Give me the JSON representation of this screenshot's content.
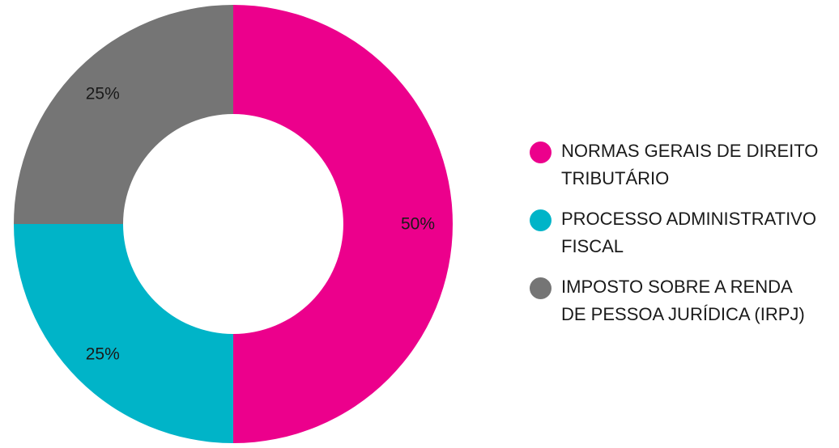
{
  "chart_data": {
    "type": "pie",
    "donut": true,
    "title": "",
    "categories": [
      "NORMAS GERAIS DE DIREITO TRIBUTÁRIO",
      "PROCESSO ADMINISTRATIVO FISCAL",
      "IMPOSTO SOBRE A RENDA DE PESSOA JURÍDICA (IRPJ)"
    ],
    "values": [
      50,
      25,
      25
    ],
    "data_labels": [
      "50%",
      "25%",
      "25%"
    ],
    "colors": [
      "#ec008c",
      "#00b4c8",
      "#757575"
    ],
    "legend": {
      "position": "right",
      "lines": [
        [
          "NORMAS GERAIS DE DIREITO",
          "TRIBUTÁRIO"
        ],
        [
          "PROCESSO ADMINISTRATIVO",
          "FISCAL"
        ],
        [
          "IMPOSTO SOBRE A RENDA",
          "DE PESSOA JURÍDICA (IRPJ)"
        ]
      ]
    },
    "start_angle": "top",
    "direction": "clockwise"
  }
}
